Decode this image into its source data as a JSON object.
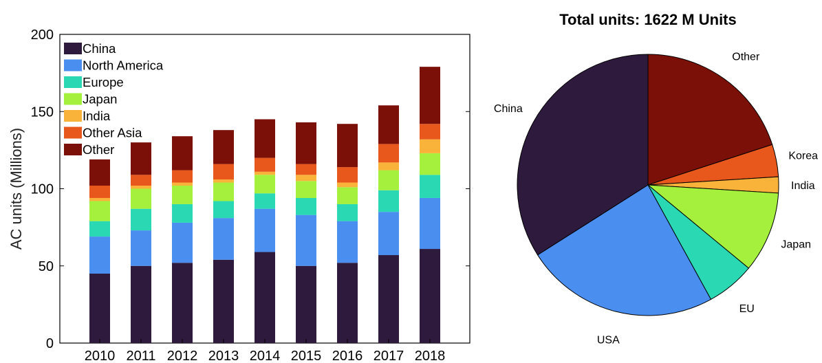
{
  "chart_data": [
    {
      "type": "bar",
      "stacked": true,
      "title": "",
      "xlabel": "",
      "ylabel": "AC units (Millions)",
      "ylim": [
        0,
        200
      ],
      "yticks": [
        0,
        50,
        100,
        150,
        200
      ],
      "grid": false,
      "legend_position": "top-left",
      "categories": [
        "2010",
        "2011",
        "2012",
        "2013",
        "2014",
        "2015",
        "2016",
        "2017",
        "2018"
      ],
      "series": [
        {
          "name": "China",
          "color": "#2e1a3d",
          "values": [
            45,
            50,
            52,
            54,
            59,
            50,
            52,
            57,
            61
          ]
        },
        {
          "name": "North America",
          "color": "#4a8ef0",
          "values": [
            24,
            23,
            26,
            27,
            28,
            33,
            27,
            28,
            33
          ]
        },
        {
          "name": "Europe",
          "color": "#2ad9b3",
          "values": [
            10,
            14,
            12,
            11,
            10,
            11,
            11,
            14,
            15
          ]
        },
        {
          "name": "Japan",
          "color": "#a5f03c",
          "values": [
            13,
            13,
            12,
            12,
            12,
            11,
            11,
            13,
            14
          ]
        },
        {
          "name": "India",
          "color": "#fab33a",
          "values": [
            2,
            2,
            2,
            2,
            2,
            4,
            3,
            5,
            9
          ]
        },
        {
          "name": "Other Asia",
          "color": "#e8571c",
          "values": [
            8,
            7,
            8,
            10,
            9,
            7,
            10,
            12,
            10
          ]
        },
        {
          "name": "Other",
          "color": "#7a1008",
          "values": [
            17,
            21,
            22,
            22,
            25,
            27,
            28,
            25,
            37
          ]
        }
      ]
    },
    {
      "type": "pie",
      "title": "Total units: 1622 M Units",
      "slices": [
        {
          "label": "Other",
          "value": 20,
          "color": "#7a1008"
        },
        {
          "label": "Korea",
          "value": 4,
          "color": "#e8571c"
        },
        {
          "label": "India",
          "value": 2,
          "color": "#fab33a"
        },
        {
          "label": "Japan",
          "value": 10,
          "color": "#a5f03c"
        },
        {
          "label": "EU",
          "value": 6,
          "color": "#2ad9b3"
        },
        {
          "label": "USA",
          "value": 24,
          "color": "#4a8ef0"
        },
        {
          "label": "China",
          "value": 34,
          "color": "#2e1a3d"
        }
      ]
    }
  ]
}
